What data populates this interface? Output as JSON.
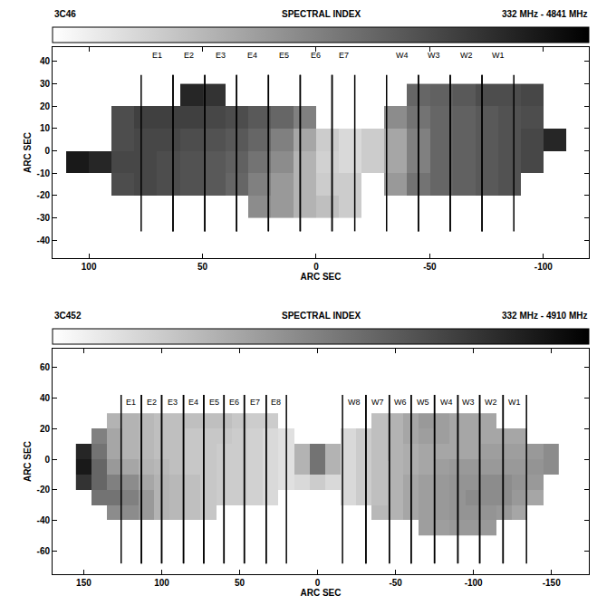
{
  "chart_data": [
    {
      "type": "heatmap",
      "name": "3C46",
      "title": "SPECTRAL INDEX",
      "subtitle": "332 MHz - 4841 MHz",
      "x_label": "ARC SEC",
      "y_label": "ARC SEC",
      "x": [
        105,
        95,
        85,
        75,
        65,
        55,
        45,
        35,
        25,
        15,
        5,
        -5,
        -15,
        -25,
        -35,
        -45,
        -55,
        -65,
        -75,
        -85,
        -95,
        -105
      ],
      "y": [
        -25,
        -15,
        -5,
        5,
        15,
        25
      ],
      "z": [
        [
          null,
          null,
          null,
          null,
          null,
          null,
          null,
          null,
          0.45,
          0.4,
          0.3,
          0.25,
          0.2,
          null,
          null,
          null,
          null,
          null,
          null,
          null,
          null,
          null
        ],
        [
          null,
          null,
          0.7,
          0.72,
          0.7,
          0.68,
          0.65,
          0.6,
          0.5,
          0.4,
          0.3,
          0.2,
          0.2,
          null,
          0.4,
          0.55,
          0.6,
          0.62,
          0.65,
          0.68,
          null,
          null
        ],
        [
          0.9,
          0.85,
          0.72,
          0.72,
          0.7,
          0.68,
          0.65,
          0.62,
          0.55,
          0.45,
          0.3,
          0.18,
          0.15,
          0.2,
          0.35,
          0.5,
          0.6,
          0.62,
          0.65,
          0.68,
          0.72,
          null
        ],
        [
          null,
          null,
          0.7,
          0.72,
          0.72,
          0.7,
          0.68,
          0.65,
          0.6,
          0.5,
          0.35,
          0.2,
          0.15,
          0.2,
          0.35,
          0.5,
          0.6,
          0.62,
          0.65,
          0.68,
          0.72,
          0.85
        ],
        [
          null,
          null,
          0.7,
          0.75,
          0.75,
          0.75,
          0.72,
          0.7,
          0.65,
          0.6,
          0.5,
          null,
          null,
          null,
          0.45,
          0.55,
          0.6,
          0.62,
          0.65,
          0.68,
          0.7,
          null
        ],
        [
          null,
          null,
          null,
          null,
          null,
          0.85,
          0.8,
          null,
          null,
          null,
          null,
          null,
          null,
          null,
          null,
          0.6,
          0.62,
          0.65,
          0.7,
          0.7,
          0.72,
          null
        ]
      ],
      "zlim": [
        0,
        1
      ],
      "colorbar_ticks": [],
      "xlim": [
        116,
        -120
      ],
      "xticks": [
        100,
        50,
        0,
        -50,
        -100
      ],
      "ylim": [
        -48,
        46.5
      ],
      "yticks": [
        -40,
        -30,
        -20,
        -10,
        0,
        10,
        20,
        30,
        40
      ],
      "regions": [
        {
          "label": "E1",
          "from": 77,
          "to": 63
        },
        {
          "label": "E2",
          "from": 63,
          "to": 49
        },
        {
          "label": "E3",
          "from": 49,
          "to": 35
        },
        {
          "label": "E4",
          "from": 35,
          "to": 21
        },
        {
          "label": "E5",
          "from": 21,
          "to": 7
        },
        {
          "label": "E6",
          "from": 7,
          "to": -7
        },
        {
          "label": "E7",
          "from": -7,
          "to": -17
        },
        {
          "label": "W4",
          "from": -31,
          "to": -45
        },
        {
          "label": "W3",
          "from": -45,
          "to": -59
        },
        {
          "label": "W2",
          "from": -59,
          "to": -73
        },
        {
          "label": "W1",
          "from": -73,
          "to": -87
        }
      ],
      "region_line_span": [
        -36,
        34
      ],
      "region_label_y": 43
    },
    {
      "type": "heatmap",
      "name": "3C452",
      "title": "SPECTRAL INDEX",
      "subtitle": "332 MHz - 4910 MHz",
      "x_label": "ARC SEC",
      "y_label": "ARC SEC",
      "x": [
        150,
        140,
        130,
        120,
        110,
        100,
        90,
        80,
        70,
        60,
        50,
        40,
        30,
        20,
        10,
        0,
        -10,
        -20,
        -30,
        -40,
        -50,
        -60,
        -70,
        -80,
        -90,
        -100,
        -110,
        -120,
        -130,
        -140,
        -150
      ],
      "y": [
        -45,
        -35,
        -25,
        -15,
        -5,
        5,
        15,
        25
      ],
      "z": [
        [
          null,
          null,
          null,
          null,
          null,
          null,
          null,
          null,
          null,
          null,
          null,
          null,
          null,
          null,
          null,
          null,
          null,
          null,
          null,
          null,
          null,
          null,
          0.38,
          0.38,
          0.4,
          0.4,
          0.4,
          null,
          null,
          null,
          null
        ],
        [
          null,
          null,
          0.45,
          0.45,
          0.4,
          0.3,
          0.28,
          0.25,
          0.22,
          null,
          null,
          null,
          null,
          null,
          null,
          null,
          null,
          null,
          null,
          0.28,
          0.3,
          0.35,
          0.38,
          0.4,
          0.42,
          0.42,
          0.42,
          0.4,
          0.35,
          null,
          null
        ],
        [
          null,
          0.55,
          0.55,
          0.5,
          0.4,
          0.3,
          0.28,
          0.25,
          0.22,
          0.2,
          0.2,
          0.18,
          0.15,
          null,
          null,
          null,
          null,
          0.15,
          0.2,
          0.25,
          0.3,
          0.35,
          0.38,
          0.4,
          0.42,
          0.45,
          0.45,
          0.45,
          0.4,
          0.35,
          null
        ],
        [
          0.8,
          0.6,
          0.5,
          0.45,
          0.35,
          0.3,
          0.28,
          0.25,
          0.22,
          0.2,
          0.2,
          0.18,
          0.15,
          0.12,
          0.15,
          0.2,
          0.15,
          0.15,
          0.2,
          0.25,
          0.3,
          0.35,
          0.38,
          0.4,
          0.42,
          0.42,
          0.45,
          0.45,
          0.42,
          0.4,
          null
        ],
        [
          0.9,
          0.6,
          0.4,
          0.35,
          0.3,
          0.28,
          0.25,
          0.22,
          0.22,
          0.2,
          0.2,
          0.18,
          0.15,
          0.12,
          0.3,
          0.55,
          0.3,
          0.15,
          0.2,
          0.25,
          0.3,
          0.32,
          0.35,
          0.38,
          0.4,
          0.4,
          0.4,
          0.4,
          0.4,
          0.42,
          0.45
        ],
        [
          0.85,
          0.55,
          0.35,
          0.3,
          0.28,
          0.25,
          0.25,
          0.22,
          0.22,
          0.2,
          0.2,
          0.18,
          0.15,
          0.12,
          0.3,
          0.55,
          0.3,
          0.15,
          0.2,
          0.25,
          0.3,
          0.32,
          0.35,
          0.35,
          0.35,
          0.35,
          0.38,
          0.38,
          0.38,
          0.4,
          0.45
        ],
        [
          null,
          0.5,
          0.35,
          0.3,
          0.28,
          0.25,
          0.25,
          0.22,
          0.22,
          0.22,
          0.2,
          0.18,
          0.15,
          0.12,
          null,
          null,
          null,
          0.15,
          0.2,
          0.25,
          0.3,
          0.35,
          0.38,
          0.38,
          0.35,
          0.35,
          0.35,
          0.35,
          0.35,
          null,
          null
        ],
        [
          null,
          null,
          0.3,
          0.3,
          0.28,
          0.25,
          0.25,
          0.25,
          0.25,
          0.25,
          0.22,
          0.2,
          0.2,
          null,
          null,
          null,
          null,
          null,
          null,
          0.25,
          0.3,
          0.35,
          0.4,
          0.38,
          0.35,
          0.35,
          0.35,
          null,
          null,
          null,
          null
        ]
      ],
      "zlim": [
        0,
        1
      ],
      "colorbar_ticks": [],
      "xlim": [
        170,
        -174
      ],
      "xticks": [
        150,
        100,
        50,
        0,
        -50,
        -100,
        -150
      ],
      "ylim": [
        -75,
        72
      ],
      "yticks": [
        -60,
        -40,
        -20,
        0,
        20,
        40,
        60
      ],
      "regions": [
        {
          "label": "E1",
          "from": 126,
          "to": 113
        },
        {
          "label": "E2",
          "from": 113,
          "to": 100
        },
        {
          "label": "E3",
          "from": 100,
          "to": 86
        },
        {
          "label": "E4",
          "from": 86,
          "to": 73
        },
        {
          "label": "E5",
          "from": 73,
          "to": 60
        },
        {
          "label": "E6",
          "from": 60,
          "to": 47
        },
        {
          "label": "E7",
          "from": 47,
          "to": 33
        },
        {
          "label": "E8",
          "from": 33,
          "to": 20
        },
        {
          "label": "W8",
          "from": -16,
          "to": -31
        },
        {
          "label": "W7",
          "from": -31,
          "to": -46
        },
        {
          "label": "W6",
          "from": -46,
          "to": -60
        },
        {
          "label": "W5",
          "from": -60,
          "to": -75
        },
        {
          "label": "W4",
          "from": -75,
          "to": -90
        },
        {
          "label": "W3",
          "from": -90,
          "to": -104
        },
        {
          "label": "W2",
          "from": -104,
          "to": -119
        },
        {
          "label": "W1",
          "from": -119,
          "to": -134
        }
      ],
      "region_line_span": [
        -68,
        42
      ],
      "region_label_y": 37
    }
  ]
}
